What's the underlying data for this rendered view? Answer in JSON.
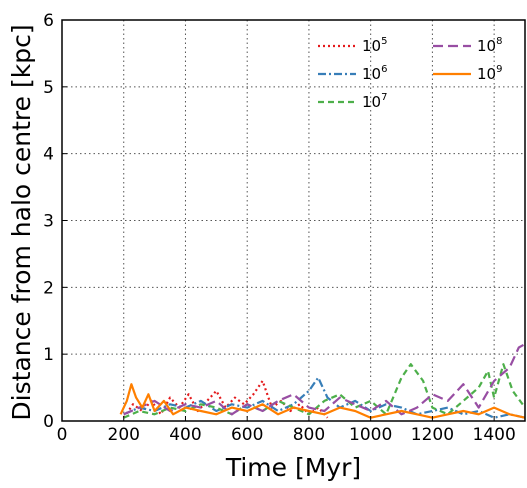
{
  "chart_data": {
    "type": "line",
    "xlabel": "Time [Myr]",
    "ylabel": "Distance from halo centre [kpc]",
    "xlim": [
      0,
      1500
    ],
    "ylim": [
      0,
      6
    ],
    "x_ticks": [
      "0",
      "200",
      "400",
      "600",
      "800",
      "1000",
      "1200",
      "1400"
    ],
    "y_ticks": [
      "0",
      "1",
      "2",
      "3",
      "4",
      "5",
      "6"
    ],
    "grid": true,
    "legend_position": "top-right",
    "series": [
      {
        "name_base": "10",
        "name_exp": "5",
        "color": "#e41a1c",
        "dash": "dotted",
        "x": [
          200,
          230,
          260,
          290,
          320,
          350,
          380,
          410,
          440,
          470,
          500,
          530,
          560,
          590,
          620,
          650,
          680,
          710,
          740,
          770,
          800,
          830,
          860
        ],
        "y": [
          0.05,
          0.25,
          0.15,
          0.3,
          0.1,
          0.35,
          0.2,
          0.4,
          0.15,
          0.3,
          0.45,
          0.2,
          0.35,
          0.25,
          0.4,
          0.6,
          0.2,
          0.3,
          0.15,
          0.25,
          0.1,
          0.2,
          0.05
        ]
      },
      {
        "name_base": "10",
        "name_exp": "6",
        "color": "#377eb8",
        "dash": "dashdot",
        "x": [
          200,
          250,
          300,
          350,
          400,
          450,
          500,
          550,
          600,
          650,
          700,
          750,
          800,
          830,
          860,
          900,
          950,
          1000,
          1050,
          1100,
          1150,
          1200,
          1250,
          1300,
          1350,
          1400,
          1450,
          1500
        ],
        "y": [
          0.1,
          0.2,
          0.15,
          0.25,
          0.2,
          0.3,
          0.15,
          0.25,
          0.2,
          0.3,
          0.15,
          0.25,
          0.45,
          0.65,
          0.35,
          0.2,
          0.3,
          0.15,
          0.25,
          0.2,
          0.1,
          0.15,
          0.2,
          0.1,
          0.15,
          0.05,
          0.1,
          0.05
        ]
      },
      {
        "name_base": "10",
        "name_exp": "7",
        "color": "#4daf4a",
        "dash": "dashed",
        "x": [
          200,
          250,
          300,
          350,
          400,
          450,
          500,
          550,
          600,
          650,
          700,
          750,
          800,
          850,
          900,
          950,
          1000,
          1050,
          1100,
          1130,
          1170,
          1200,
          1250,
          1300,
          1350,
          1380,
          1400,
          1430,
          1460,
          1500
        ],
        "y": [
          0.05,
          0.15,
          0.1,
          0.2,
          0.15,
          0.25,
          0.2,
          0.1,
          0.25,
          0.15,
          0.3,
          0.2,
          0.1,
          0.3,
          0.4,
          0.2,
          0.3,
          0.1,
          0.65,
          0.85,
          0.6,
          0.2,
          0.1,
          0.3,
          0.5,
          0.75,
          0.35,
          0.85,
          0.45,
          0.2
        ]
      },
      {
        "name_base": "10",
        "name_exp": "8",
        "color": "#984ea3",
        "dash": "longdash",
        "x": [
          200,
          250,
          300,
          350,
          400,
          450,
          500,
          550,
          600,
          650,
          700,
          750,
          800,
          850,
          900,
          950,
          1000,
          1050,
          1100,
          1150,
          1200,
          1250,
          1300,
          1350,
          1400,
          1450,
          1480,
          1500
        ],
        "y": [
          0.1,
          0.2,
          0.3,
          0.15,
          0.25,
          0.2,
          0.3,
          0.1,
          0.25,
          0.15,
          0.3,
          0.4,
          0.2,
          0.15,
          0.35,
          0.25,
          0.15,
          0.3,
          0.1,
          0.2,
          0.4,
          0.3,
          0.55,
          0.2,
          0.6,
          0.8,
          1.1,
          1.15
        ]
      },
      {
        "name_base": "10",
        "name_exp": "9",
        "color": "#ff7f00",
        "dash": "solid",
        "x": [
          190,
          210,
          225,
          240,
          260,
          280,
          300,
          330,
          360,
          400,
          450,
          500,
          550,
          600,
          650,
          700,
          750,
          800,
          850,
          900,
          950,
          1000,
          1050,
          1100,
          1150,
          1200,
          1250,
          1300,
          1350,
          1400,
          1450,
          1500
        ],
        "y": [
          0.1,
          0.3,
          0.55,
          0.35,
          0.2,
          0.4,
          0.15,
          0.3,
          0.1,
          0.2,
          0.15,
          0.1,
          0.2,
          0.15,
          0.25,
          0.1,
          0.2,
          0.15,
          0.1,
          0.2,
          0.15,
          0.05,
          0.1,
          0.15,
          0.1,
          0.05,
          0.1,
          0.15,
          0.1,
          0.2,
          0.1,
          0.05
        ]
      }
    ]
  }
}
